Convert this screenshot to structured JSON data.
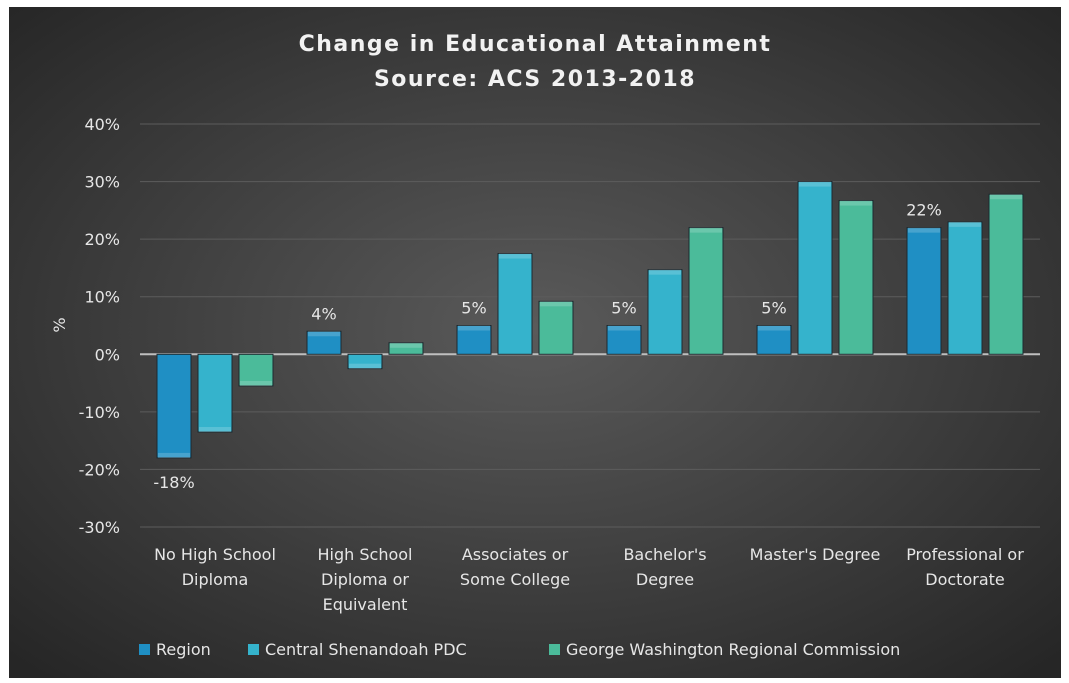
{
  "chart_data": {
    "type": "bar",
    "title_lines": [
      "Change in Educational Attainment",
      "Source: ACS 2013-2018"
    ],
    "xlabel": "",
    "ylabel": "%",
    "ylim": [
      -30,
      40
    ],
    "yticks": [
      40,
      30,
      20,
      10,
      0,
      -10,
      -20,
      -30
    ],
    "ytick_labels": [
      "40%",
      "30%",
      "20%",
      "10%",
      "0%",
      "-10%",
      "-20%",
      "-30%"
    ],
    "grid": true,
    "legend_position": "bottom",
    "categories": [
      [
        "No High School",
        "Diploma"
      ],
      [
        "High School",
        "Diploma or",
        "Equivalent"
      ],
      [
        "Associates or",
        "Some College"
      ],
      [
        "Bachelor's",
        "Degree"
      ],
      [
        "Master's Degree"
      ],
      [
        "Professional or",
        "Doctorate"
      ]
    ],
    "series": [
      {
        "name": "Region",
        "color": "#1f8fc4",
        "values": [
          -18,
          4,
          5,
          5,
          5,
          22
        ],
        "data_labels": [
          "-18%",
          "4%",
          "5%",
          "5%",
          "5%",
          "22%"
        ]
      },
      {
        "name": "Central Shenandoah PDC",
        "color": "#35b3cc",
        "values": [
          -13.5,
          -2.5,
          17.5,
          14.7,
          30,
          23
        ]
      },
      {
        "name": "George Washington Regional Commission",
        "color": "#4bbb9a",
        "values": [
          -5.5,
          2,
          9.2,
          22,
          26.7,
          27.8
        ]
      }
    ]
  }
}
